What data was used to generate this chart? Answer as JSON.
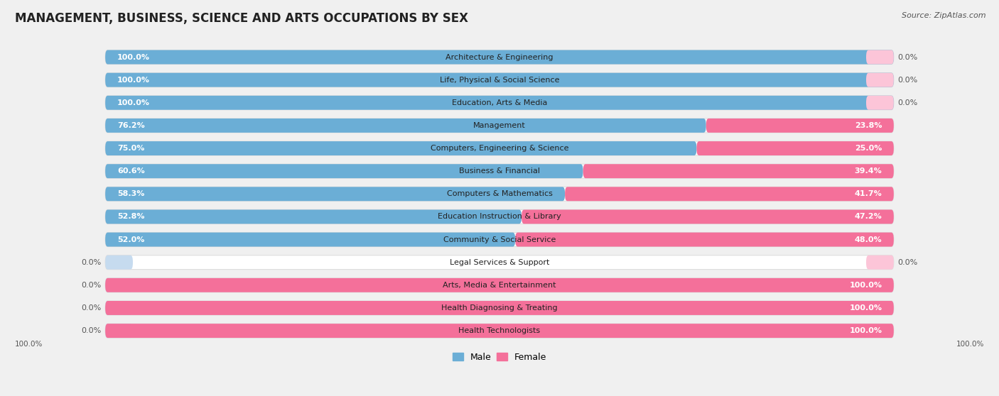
{
  "title": "MANAGEMENT, BUSINESS, SCIENCE AND ARTS OCCUPATIONS BY SEX",
  "source": "Source: ZipAtlas.com",
  "categories": [
    "Architecture & Engineering",
    "Life, Physical & Social Science",
    "Education, Arts & Media",
    "Management",
    "Computers, Engineering & Science",
    "Business & Financial",
    "Computers & Mathematics",
    "Education Instruction & Library",
    "Community & Social Service",
    "Legal Services & Support",
    "Arts, Media & Entertainment",
    "Health Diagnosing & Treating",
    "Health Technologists"
  ],
  "male": [
    100.0,
    100.0,
    100.0,
    76.2,
    75.0,
    60.6,
    58.3,
    52.8,
    52.0,
    0.0,
    0.0,
    0.0,
    0.0
  ],
  "female": [
    0.0,
    0.0,
    0.0,
    23.8,
    25.0,
    39.4,
    41.7,
    47.2,
    48.0,
    0.0,
    100.0,
    100.0,
    100.0
  ],
  "male_color": "#6baed6",
  "female_color": "#f4709a",
  "male_color_light": "#c6dbef",
  "female_color_light": "#fcc5d8",
  "bg_color": "#f0f0f0",
  "row_bg_color": "#ffffff",
  "row_outline_color": "#dddddd",
  "title_fontsize": 12,
  "label_fontsize": 8.0,
  "pct_fontsize": 8.0,
  "bar_height": 0.62,
  "legend_fontsize": 9
}
